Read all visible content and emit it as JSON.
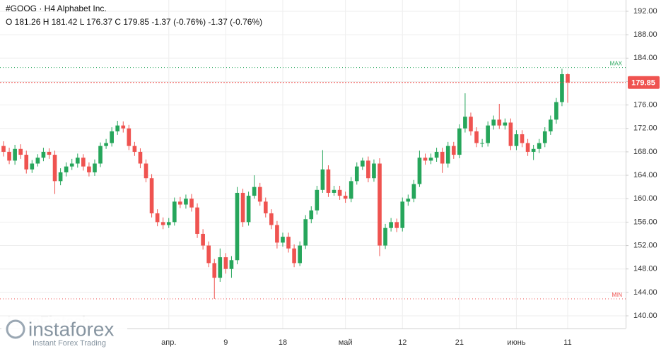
{
  "chart_data": {
    "type": "candlestick",
    "title": "#GOOG · H4 Alphabet Inc.",
    "subtitle": "O 181.26 H 181.42 L 176.37 C 179.85 -1.37 (-0.76%) -1.37 (-0.76%)",
    "watermark": {
      "brand": "instaforex",
      "tagline": "Instant Forex Trading",
      "background": "InstaFintech"
    },
    "up_color": "#26a65b",
    "down_color": "#ef5350",
    "grid": true,
    "ylim": [
      137.83,
      193.93
    ],
    "yticks": [
      {
        "value": 140,
        "label": "140.00"
      },
      {
        "value": 144,
        "label": "144.00"
      },
      {
        "value": 148,
        "label": "148.00"
      },
      {
        "value": 152,
        "label": "152.00"
      },
      {
        "value": 156,
        "label": "156.00"
      },
      {
        "value": 160,
        "label": "160.00"
      },
      {
        "value": 164,
        "label": "164.00"
      },
      {
        "value": 168,
        "label": "168.00"
      },
      {
        "value": 172,
        "label": "172.00"
      },
      {
        "value": 176,
        "label": "176.00"
      },
      {
        "value": 180,
        "label": "180.00"
      },
      {
        "value": 184,
        "label": "184.00"
      },
      {
        "value": 188,
        "label": "188.00"
      },
      {
        "value": 192,
        "label": "192.00"
      }
    ],
    "lines": [
      {
        "name": "MAX",
        "value": 182.4,
        "color": "#26a65b"
      },
      {
        "name": "MIN",
        "value": 142.9,
        "color": "#ef5350"
      }
    ],
    "last_price": {
      "value": 179.85,
      "color": "#ef5350"
    },
    "categories": [
      null,
      null,
      null,
      null,
      null,
      null,
      null,
      null,
      null,
      null,
      null,
      null,
      null,
      null,
      null,
      null,
      null,
      null,
      null,
      null,
      null,
      null,
      null,
      null,
      null,
      null,
      null,
      null,
      null,
      "апр.",
      null,
      null,
      null,
      null,
      null,
      null,
      null,
      null,
      null,
      "9",
      null,
      null,
      null,
      null,
      null,
      null,
      null,
      null,
      null,
      "18",
      null,
      null,
      null,
      null,
      null,
      null,
      null,
      null,
      null,
      null,
      "май",
      null,
      null,
      null,
      null,
      null,
      null,
      null,
      null,
      null,
      "12",
      null,
      null,
      null,
      null,
      null,
      null,
      null,
      null,
      null,
      "21",
      null,
      null,
      null,
      null,
      null,
      null,
      null,
      null,
      null,
      "июнь",
      null,
      null,
      null,
      null,
      null,
      null,
      null,
      null,
      "11"
    ],
    "open": [
      169,
      168,
      166.5,
      168.5,
      167.5,
      165,
      166,
      167,
      168,
      167.5,
      163,
      164.5,
      165.5,
      166,
      167,
      165.5,
      164.5,
      166,
      169,
      169.5,
      171.5,
      172.5,
      172,
      169,
      168,
      166,
      163.5,
      157.5,
      156,
      155.5,
      156,
      159.5,
      159,
      160,
      158.5,
      154,
      152,
      149,
      146.5,
      150,
      148,
      149.5,
      161,
      156,
      160.5,
      162,
      159.5,
      157.5,
      155.5,
      152.5,
      153.5,
      151.5,
      149,
      152,
      156.5,
      158,
      161.5,
      165,
      161,
      161.5,
      160.5,
      160,
      163,
      165.5,
      166.5,
      163.5,
      166,
      152,
      155,
      156,
      155,
      159.5,
      160,
      162.5,
      167,
      166.5,
      167,
      168,
      166,
      169,
      167.5,
      172,
      174,
      171.5,
      169.5,
      169.5,
      172.5,
      173.5,
      172.5,
      173,
      169,
      171,
      169.5,
      168,
      168.5,
      169.5,
      171.5,
      173.5,
      176.5,
      181.26
    ],
    "high": [
      169.8,
      168.7,
      169.2,
      169.3,
      168.2,
      166.6,
      167.6,
      168.7,
      168.6,
      168.2,
      165.2,
      166.2,
      166.8,
      167.7,
      167.6,
      166.2,
      166.7,
      169.6,
      170.2,
      172.2,
      173.3,
      173.2,
      172.6,
      169.7,
      168.6,
      166.7,
      164.2,
      158.2,
      156.8,
      156.7,
      160.2,
      160.3,
      160.7,
      160.8,
      159.2,
      154.8,
      152.7,
      149.7,
      151.5,
      150.7,
      150.2,
      162,
      161.7,
      161.2,
      164,
      162.7,
      160.2,
      158.2,
      156.2,
      154.2,
      154.2,
      152.2,
      152.7,
      157.2,
      158.7,
      162.2,
      168.3,
      165.7,
      162.2,
      162.2,
      161.2,
      163.7,
      166.2,
      167,
      167.2,
      166.7,
      166.9,
      155.7,
      156.7,
      156.6,
      160.2,
      160.7,
      163.2,
      168.2,
      167.7,
      167.7,
      168.7,
      168.7,
      169.7,
      169.7,
      172.7,
      178,
      174.7,
      172.2,
      170.2,
      173.2,
      174.2,
      176.2,
      173.7,
      173.7,
      171.7,
      171.7,
      170.2,
      169.2,
      170.2,
      172.2,
      174.2,
      177.2,
      182.2,
      181.42
    ],
    "low": [
      167.2,
      165.9,
      165.8,
      166.8,
      164.3,
      164.4,
      165.5,
      166.4,
      166.8,
      160.8,
      162.3,
      163.8,
      164.9,
      165.3,
      164.8,
      163.8,
      163.9,
      165.4,
      168.5,
      168.9,
      170.9,
      171.3,
      168.3,
      167.3,
      165.2,
      162.8,
      156.8,
      155.3,
      154.8,
      155,
      155.4,
      158.4,
      158.3,
      157.8,
      153.3,
      151.3,
      148.3,
      142.9,
      145.8,
      147.2,
      146.5,
      148.8,
      155.2,
      155.4,
      160,
      158.8,
      156.8,
      154.8,
      151.5,
      151.8,
      150.8,
      148.3,
      148.5,
      151.4,
      155.8,
      157.3,
      161,
      160.3,
      160.5,
      159.8,
      159.3,
      159.4,
      162.4,
      164.9,
      162.8,
      162.9,
      150.2,
      151.4,
      154.4,
      154.3,
      154.4,
      158.8,
      159.4,
      162,
      165.8,
      165.9,
      166.3,
      164.4,
      165.3,
      166.8,
      166.9,
      171.3,
      170.8,
      168.8,
      168.8,
      168.9,
      171.8,
      171.9,
      171.8,
      168.3,
      168.3,
      168.8,
      167.3,
      166.6,
      167.8,
      168.8,
      170.9,
      172.8,
      175.8,
      176.37
    ],
    "close": [
      168,
      166.5,
      168.5,
      167.5,
      165,
      166,
      167,
      168,
      167.5,
      163,
      164.5,
      165.5,
      166,
      167,
      165.5,
      164.5,
      166,
      169,
      169.5,
      171.5,
      172.5,
      172,
      169,
      168,
      166,
      163.5,
      157.5,
      156,
      155.5,
      156,
      159.5,
      159,
      160,
      158.5,
      154,
      152,
      149,
      146.5,
      150,
      148,
      149.5,
      161,
      156,
      160.5,
      162,
      159.5,
      157.5,
      155.5,
      152.5,
      153.5,
      151.5,
      149,
      152,
      156.5,
      158,
      161.5,
      165,
      161,
      161.5,
      160.5,
      160,
      163,
      165.5,
      166.5,
      163.5,
      166,
      152,
      155,
      156,
      155,
      159.5,
      160,
      162.5,
      167,
      166.5,
      167,
      168,
      166,
      169,
      167.5,
      172,
      174,
      171.5,
      169.5,
      169.5,
      172.5,
      173.5,
      172.5,
      173,
      169,
      171,
      169.5,
      168,
      168.5,
      169.5,
      171.5,
      173.5,
      176.5,
      181.26,
      179.85
    ]
  }
}
